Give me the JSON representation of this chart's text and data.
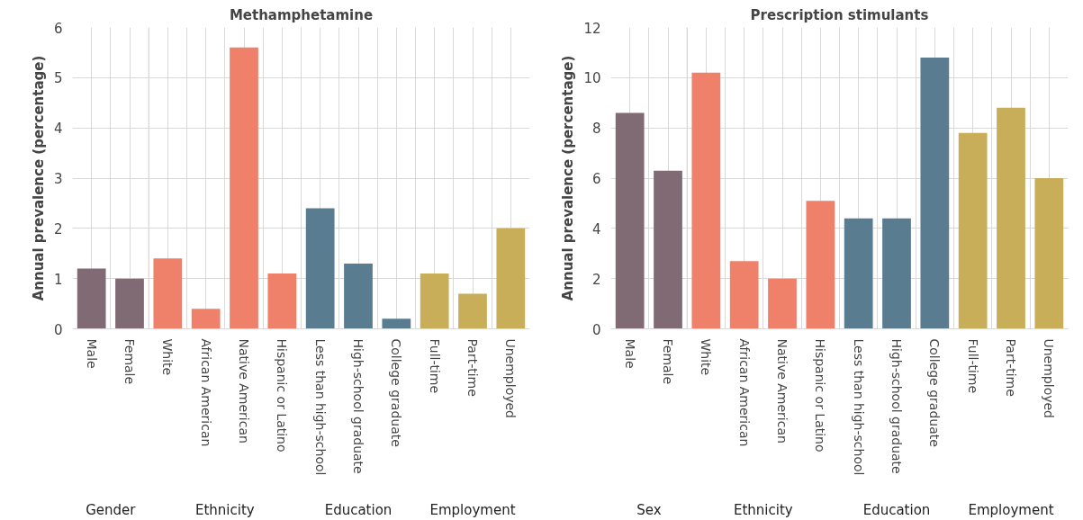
{
  "chart_data": [
    {
      "type": "bar",
      "title": "Methamphetamine",
      "ylabel": "Annual prevalence (percentage)",
      "categories": [
        "Male",
        "Female",
        "White",
        "African American",
        "Native American",
        "Hispanic or Latino",
        "Less than high-school",
        "High-school graduate",
        "College graduate",
        "Full-time",
        "Part-time",
        "Unemployed"
      ],
      "values": [
        1.2,
        1.0,
        1.4,
        0.4,
        5.6,
        1.1,
        2.4,
        1.3,
        0.2,
        1.1,
        0.7,
        2.0
      ],
      "colors": [
        "#806b74",
        "#806b74",
        "#ef806a",
        "#ef806a",
        "#ef806a",
        "#ef806a",
        "#5a7c91",
        "#5a7c91",
        "#5a7c91",
        "#c8ae58",
        "#c8ae58",
        "#c8ae58"
      ],
      "annotations": [
        "Gender",
        "Ethnicity",
        "Education",
        "Employment"
      ],
      "ylim": [
        0,
        6
      ],
      "yticks": [
        0,
        1,
        2,
        3,
        4,
        5,
        6
      ],
      "grid": true
    },
    {
      "type": "bar",
      "title": "Prescription stimulants",
      "ylabel": "Annual prevalence (percentage)",
      "categories": [
        "Male",
        "Female",
        "White",
        "African American",
        "Native American",
        "Hispanic or Latino",
        "Less than high-school",
        "High-school graduate",
        "College graduate",
        "Full-time",
        "Part-time",
        "Unemployed"
      ],
      "values": [
        8.6,
        6.3,
        10.2,
        2.7,
        2.0,
        5.1,
        4.4,
        4.4,
        10.8,
        7.8,
        8.8,
        6.0
      ],
      "colors": [
        "#806b74",
        "#806b74",
        "#ef806a",
        "#ef806a",
        "#ef806a",
        "#ef806a",
        "#5a7c91",
        "#5a7c91",
        "#5a7c91",
        "#c8ae58",
        "#c8ae58",
        "#c8ae58"
      ],
      "annotations": [
        "Sex",
        "Ethnicity",
        "Education",
        "Employment"
      ],
      "ylim": [
        0,
        12
      ],
      "yticks": [
        0,
        2,
        4,
        6,
        8,
        10,
        12
      ],
      "grid": true
    }
  ]
}
